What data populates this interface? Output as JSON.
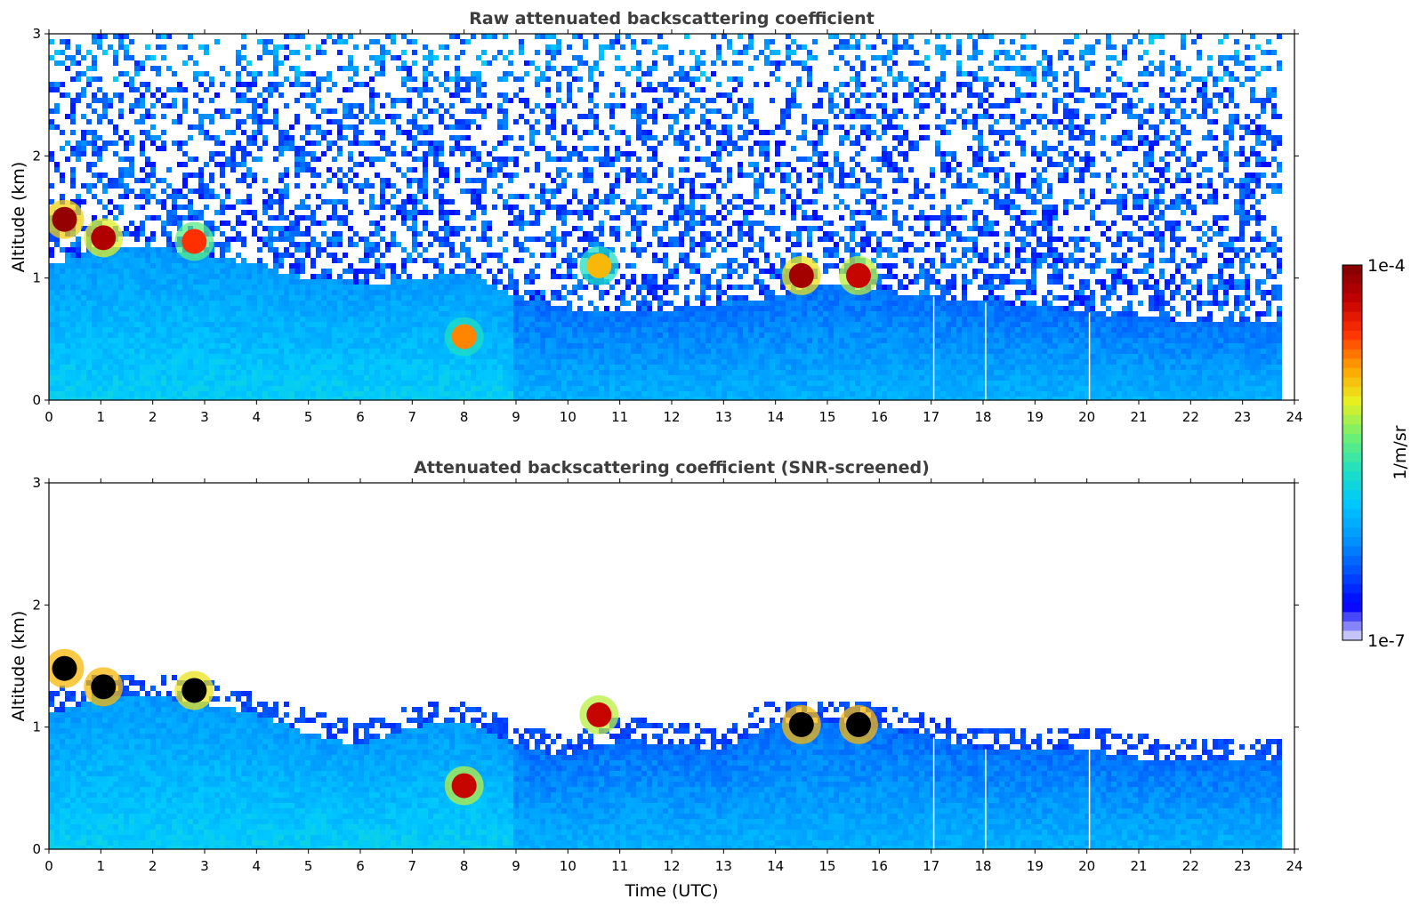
{
  "colors": {
    "colormap": [
      "#e3e3f5",
      "#0000ff",
      "#0050ff",
      "#0098ff",
      "#00c8ff",
      "#20e0c0",
      "#70f070",
      "#e8f020",
      "#ffa000",
      "#ff3000",
      "#c00000",
      "#800000"
    ],
    "saturated": "#000000",
    "axis": "#000000",
    "title": "#3d3d3d"
  },
  "chart_data": [
    {
      "type": "heatmap",
      "title": "Raw attenuated backscattering coefficient",
      "xlabel": "",
      "ylabel": "Altitude (km)",
      "xlim": [
        0,
        24
      ],
      "ylim": [
        0,
        3
      ],
      "x_ticks": [
        "0",
        "1",
        "2",
        "3",
        "4",
        "5",
        "6",
        "7",
        "8",
        "9",
        "10",
        "11",
        "12",
        "13",
        "14",
        "15",
        "16",
        "17",
        "18",
        "19",
        "20",
        "21",
        "22",
        "23",
        "24"
      ],
      "y_ticks": [
        "0",
        "1",
        "2",
        "3"
      ],
      "screened": false,
      "boundary_layer_top_km": {
        "x": [
          0,
          1,
          2,
          3,
          4,
          5,
          6,
          7,
          8,
          9,
          10,
          11,
          12,
          13,
          14,
          15,
          16,
          17,
          18,
          19,
          20,
          21,
          22,
          23,
          23.8
        ],
        "y": [
          1.1,
          1.25,
          1.25,
          1.2,
          1.1,
          1.0,
          0.95,
          0.98,
          1.05,
          0.85,
          0.75,
          0.75,
          0.75,
          0.78,
          0.85,
          0.95,
          0.9,
          0.85,
          0.8,
          0.78,
          0.72,
          0.68,
          0.65,
          0.66,
          0.66
        ]
      },
      "clouds": [
        {
          "t": 0.3,
          "z": 1.48,
          "level": 0.97
        },
        {
          "t": 1.05,
          "z": 1.33,
          "level": 0.93
        },
        {
          "t": 2.8,
          "z": 1.3,
          "level": 0.82
        },
        {
          "t": 8.0,
          "z": 0.52,
          "level": 0.75
        },
        {
          "t": 10.6,
          "z": 1.1,
          "level": 0.7
        },
        {
          "t": 14.5,
          "z": 1.02,
          "level": 0.95
        },
        {
          "t": 15.6,
          "z": 1.02,
          "level": 0.9
        }
      ],
      "data_gaps_utc": [
        17.05,
        18.05,
        20.05
      ],
      "data_end_utc": 23.8
    },
    {
      "type": "heatmap",
      "title": "Attenuated backscattering coefficient (SNR-screened)",
      "xlabel": "Time (UTC)",
      "ylabel": "Altitude (km)",
      "xlim": [
        0,
        24
      ],
      "ylim": [
        0,
        3
      ],
      "x_ticks": [
        "0",
        "1",
        "2",
        "3",
        "4",
        "5",
        "6",
        "7",
        "8",
        "9",
        "10",
        "11",
        "12",
        "13",
        "14",
        "15",
        "16",
        "17",
        "18",
        "19",
        "20",
        "21",
        "22",
        "23",
        "24"
      ],
      "y_ticks": [
        "0",
        "1",
        "2",
        "3"
      ],
      "screened": true,
      "boundary_layer_top_km": {
        "x": [
          0,
          1,
          2,
          3,
          4,
          5,
          6,
          7,
          8,
          9,
          10,
          11,
          12,
          13,
          14,
          15,
          16,
          17,
          18,
          19,
          20,
          21,
          22,
          23,
          23.8
        ],
        "y": [
          1.1,
          1.25,
          1.25,
          1.2,
          1.1,
          0.95,
          0.85,
          1.0,
          1.05,
          0.85,
          0.75,
          0.9,
          0.85,
          0.82,
          1.05,
          1.05,
          1.0,
          0.92,
          0.82,
          0.8,
          0.82,
          0.75,
          0.72,
          0.72,
          0.72
        ]
      },
      "clouds": [
        {
          "t": 0.3,
          "z": 1.48,
          "level": 1.0
        },
        {
          "t": 1.05,
          "z": 1.33,
          "level": 1.0
        },
        {
          "t": 2.8,
          "z": 1.3,
          "level": 0.95
        },
        {
          "t": 8.0,
          "z": 0.52,
          "level": 0.9
        },
        {
          "t": 10.6,
          "z": 1.1,
          "level": 0.9
        },
        {
          "t": 14.5,
          "z": 1.02,
          "level": 1.0
        },
        {
          "t": 15.6,
          "z": 1.02,
          "level": 1.0
        }
      ],
      "data_gaps_utc": [
        17.05,
        18.05,
        20.05
      ],
      "data_end_utc": 23.8
    }
  ],
  "colorbar": {
    "label": "1/m/sr",
    "max_label": "1e-4",
    "min_label": "1e-7",
    "range": [
      1e-07,
      0.0001
    ],
    "scale": "log"
  }
}
